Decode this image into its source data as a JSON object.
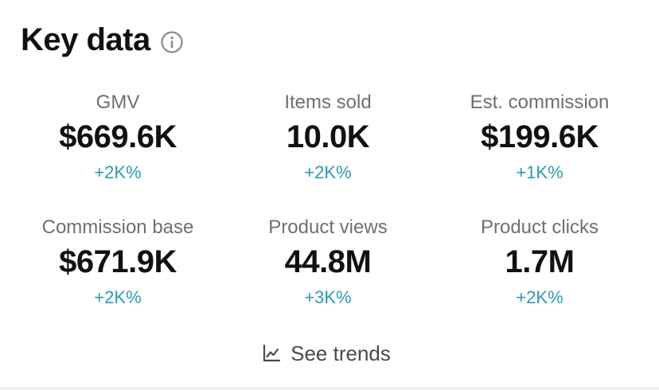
{
  "header": {
    "title": "Key data",
    "info_icon": "info-circle-icon"
  },
  "metrics": [
    {
      "label": "GMV",
      "value": "$669.6K",
      "change": "+2K%"
    },
    {
      "label": "Items sold",
      "value": "10.0K",
      "change": "+2K%"
    },
    {
      "label": "Est. commission",
      "value": "$199.6K",
      "change": "+1K%"
    },
    {
      "label": "Commission base",
      "value": "$671.9K",
      "change": "+2K%"
    },
    {
      "label": "Product views",
      "value": "44.8M",
      "change": "+3K%"
    },
    {
      "label": "Product clicks",
      "value": "1.7M",
      "change": "+2K%"
    }
  ],
  "trends": {
    "label": "See trends",
    "icon": "line-chart-icon"
  },
  "colors": {
    "change_positive": "#2a9bb3",
    "label_gray": "#6f6f73",
    "value_black": "#111111"
  }
}
